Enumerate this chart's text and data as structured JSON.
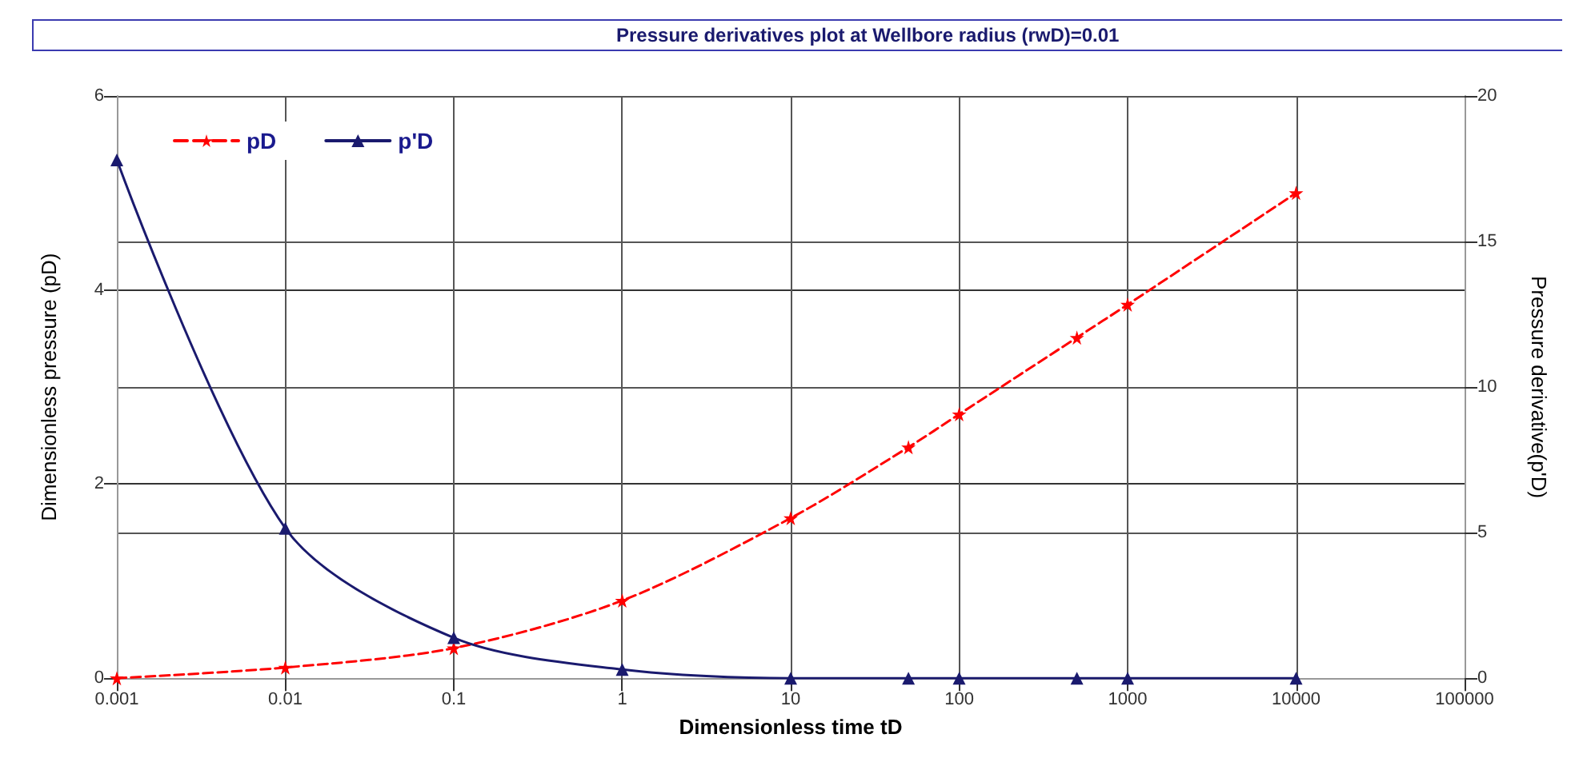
{
  "chart_data": {
    "type": "line",
    "title": "Pressure derivatives plot at Wellbore radius (rwD)=0.01",
    "xlabel": "Dimensionless time tD",
    "ylabel": "Dimensionless pressure (pD)",
    "y2label": "Pressure derivative(p'D)",
    "x": [
      0.001,
      0.01,
      0.1,
      1,
      10,
      50,
      100,
      500,
      1000,
      10000
    ],
    "series": [
      {
        "name": "pD",
        "color": "#ff0000",
        "marker": "star",
        "line_style": "dashed",
        "values": [
          0.0,
          0.11,
          0.31,
          0.8,
          1.65,
          2.38,
          2.72,
          3.51,
          3.85,
          5.0
        ]
      },
      {
        "name": "p'D",
        "color": "#1a1a6e",
        "marker": "triangle",
        "line_style": "solid",
        "axis": "y2",
        "values": [
          17.8,
          5.15,
          1.39,
          0.3,
          0.0,
          0.0,
          0.0,
          0.0,
          0.0,
          0.0
        ]
      }
    ],
    "log": "x",
    "xlim": [
      0.001,
      100000
    ],
    "xticks": [
      0.001,
      0.01,
      0.1,
      1,
      10,
      100,
      1000,
      10000,
      100000
    ],
    "ylim": [
      0,
      6
    ],
    "yticks": [
      0,
      2,
      4,
      6
    ],
    "y2lim": [
      0,
      20
    ],
    "y2ticks": [
      0,
      5,
      10,
      15,
      20
    ],
    "grid": true,
    "legend": "top left"
  }
}
